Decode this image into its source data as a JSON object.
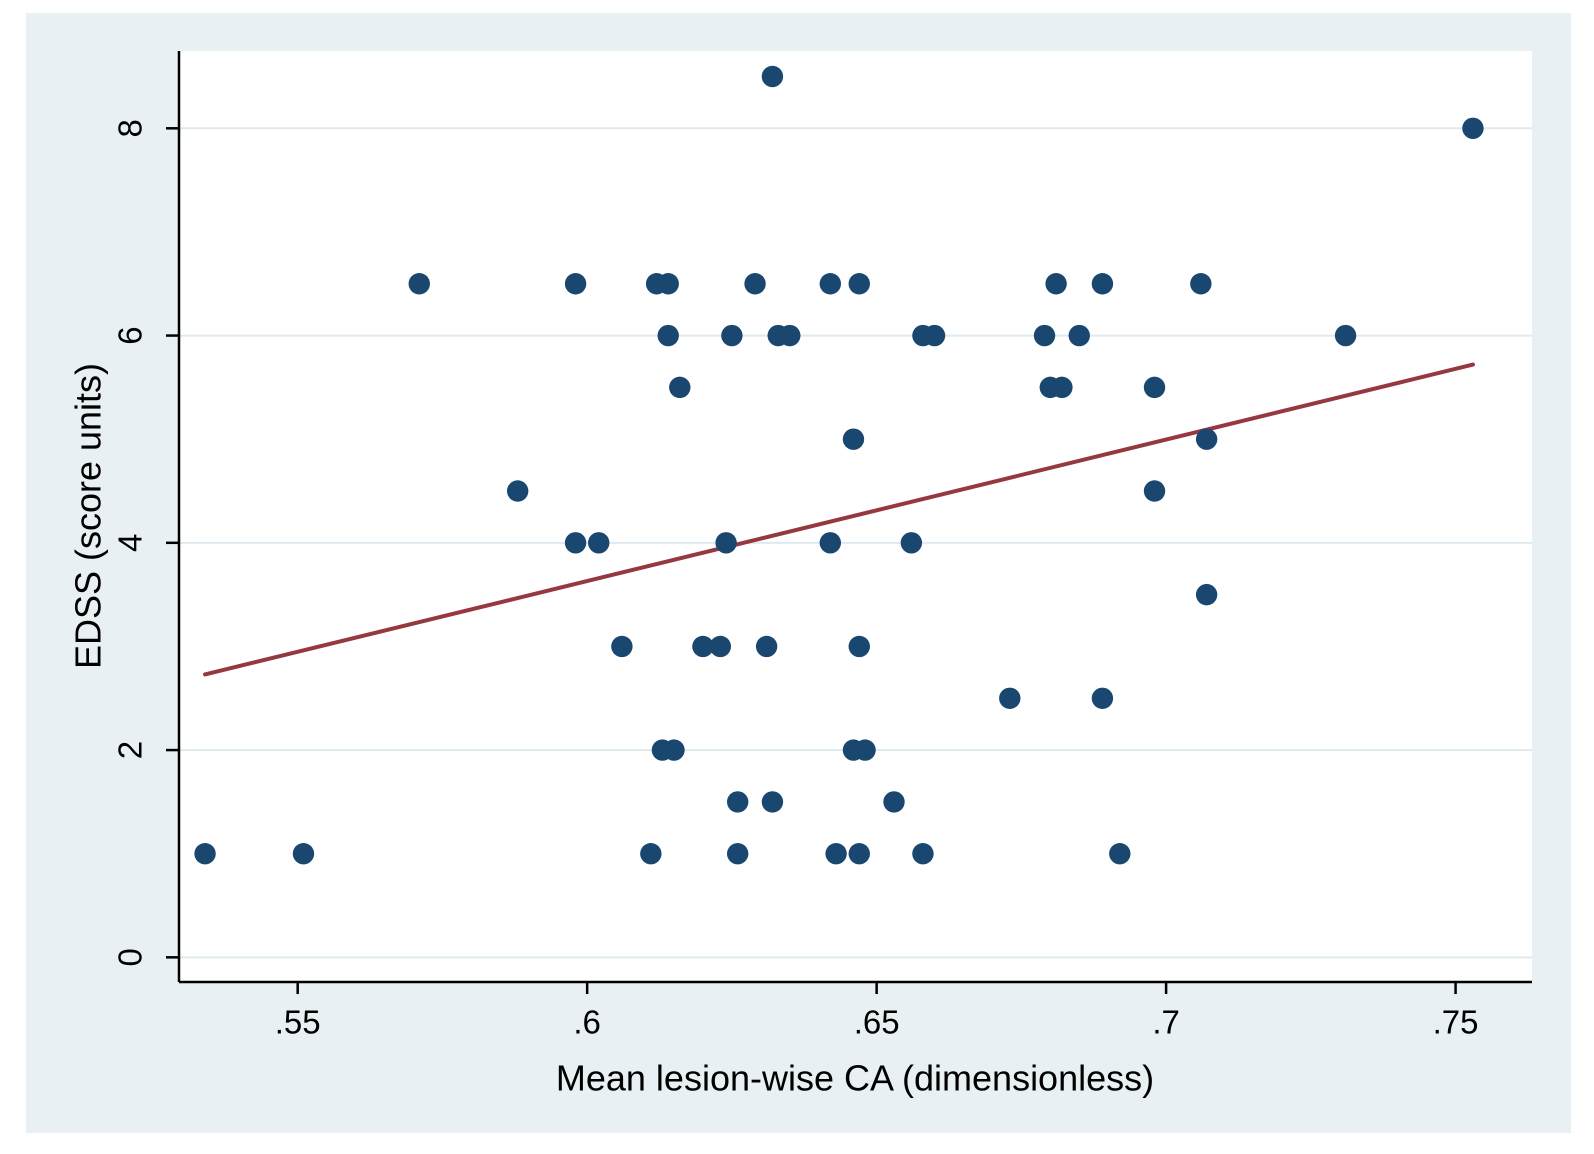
{
  "chart_data": {
    "type": "scatter",
    "title": "",
    "xlabel": "Mean lesion-wise CA (dimensionless)",
    "ylabel": "EDSS (score units)",
    "x_ticks": [
      {
        "value": 0.55,
        "label": ".55"
      },
      {
        "value": 0.6,
        "label": ".6"
      },
      {
        "value": 0.65,
        "label": ".65"
      },
      {
        "value": 0.7,
        "label": ".7"
      },
      {
        "value": 0.75,
        "label": ".75"
      }
    ],
    "y_ticks": [
      {
        "value": 0,
        "label": "0"
      },
      {
        "value": 2,
        "label": "2"
      },
      {
        "value": 4,
        "label": "4"
      },
      {
        "value": 6,
        "label": "6"
      },
      {
        "value": 8,
        "label": "8"
      }
    ],
    "xlim": [
      0.5295,
      0.7632
    ],
    "ylim": [
      -0.238,
      8.746
    ],
    "grid": "horizontal",
    "legend": "none",
    "points": [
      [
        0.632,
        8.5
      ],
      [
        0.753,
        8.0
      ],
      [
        0.571,
        6.5
      ],
      [
        0.598,
        6.5
      ],
      [
        0.612,
        6.5
      ],
      [
        0.614,
        6.5
      ],
      [
        0.629,
        6.5
      ],
      [
        0.642,
        6.5
      ],
      [
        0.647,
        6.5
      ],
      [
        0.681,
        6.5
      ],
      [
        0.689,
        6.5
      ],
      [
        0.706,
        6.5
      ],
      [
        0.614,
        6.0
      ],
      [
        0.625,
        6.0
      ],
      [
        0.633,
        6.0
      ],
      [
        0.635,
        6.0
      ],
      [
        0.658,
        6.0
      ],
      [
        0.66,
        6.0
      ],
      [
        0.679,
        6.0
      ],
      [
        0.685,
        6.0
      ],
      [
        0.731,
        6.0
      ],
      [
        0.616,
        5.5
      ],
      [
        0.68,
        5.5
      ],
      [
        0.682,
        5.5
      ],
      [
        0.698,
        5.5
      ],
      [
        0.646,
        5.0
      ],
      [
        0.707,
        5.0
      ],
      [
        0.588,
        4.5
      ],
      [
        0.698,
        4.5
      ],
      [
        0.598,
        4.0
      ],
      [
        0.602,
        4.0
      ],
      [
        0.624,
        4.0
      ],
      [
        0.642,
        4.0
      ],
      [
        0.656,
        4.0
      ],
      [
        0.707,
        3.5
      ],
      [
        0.606,
        3.0
      ],
      [
        0.62,
        3.0
      ],
      [
        0.623,
        3.0
      ],
      [
        0.631,
        3.0
      ],
      [
        0.647,
        3.0
      ],
      [
        0.673,
        2.5
      ],
      [
        0.689,
        2.5
      ],
      [
        0.613,
        2.0
      ],
      [
        0.615,
        2.0
      ],
      [
        0.646,
        2.0
      ],
      [
        0.648,
        2.0
      ],
      [
        0.626,
        1.5
      ],
      [
        0.632,
        1.5
      ],
      [
        0.653,
        1.5
      ],
      [
        0.534,
        1.0
      ],
      [
        0.551,
        1.0
      ],
      [
        0.611,
        1.0
      ],
      [
        0.626,
        1.0
      ],
      [
        0.643,
        1.0
      ],
      [
        0.647,
        1.0
      ],
      [
        0.658,
        1.0
      ],
      [
        0.692,
        1.0
      ]
    ],
    "fit_line": {
      "x1": 0.534,
      "y1": 2.73,
      "x2": 0.753,
      "y2": 5.72,
      "slope": 13.65,
      "intercept": -4.56
    },
    "colors": {
      "marker": "#1a476f",
      "fit_line": "#96383f",
      "figure_background": "#e9f0f3",
      "plot_background": "#ffffff",
      "gridline": "#dfeaef",
      "axis_line": "#000000",
      "page_background": "#ffffff"
    }
  }
}
